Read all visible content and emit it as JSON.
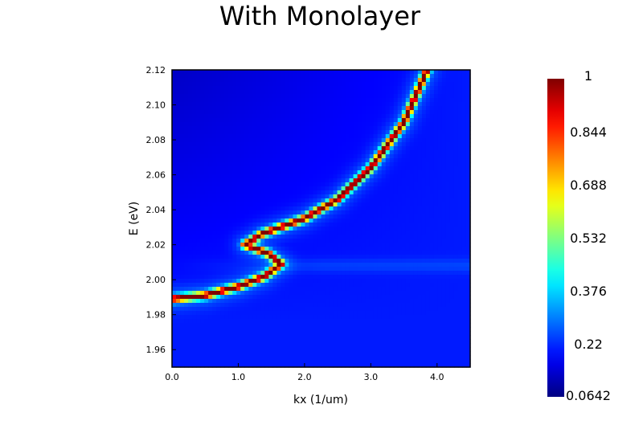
{
  "chart_data": {
    "type": "heatmap",
    "title": "With Monolayer",
    "xlabel": "kx (1/um)",
    "ylabel": "E (eV)",
    "xlim": [
      0.0,
      4.5
    ],
    "ylim": [
      1.95,
      2.12
    ],
    "x_ticks": [
      {
        "value": 0.0,
        "label": "0.0"
      },
      {
        "value": 1.0,
        "label": "1.0"
      },
      {
        "value": 2.0,
        "label": "2.0"
      },
      {
        "value": 3.0,
        "label": "3.0"
      },
      {
        "value": 4.0,
        "label": "4.0"
      }
    ],
    "y_ticks": [
      {
        "value": 1.96,
        "label": "1.96"
      },
      {
        "value": 1.98,
        "label": "1.98"
      },
      {
        "value": 2.0,
        "label": "2.00"
      },
      {
        "value": 2.02,
        "label": "2.02"
      },
      {
        "value": 2.04,
        "label": "2.04"
      },
      {
        "value": 2.06,
        "label": "2.06"
      },
      {
        "value": 2.08,
        "label": "2.08"
      },
      {
        "value": 2.1,
        "label": "2.10"
      },
      {
        "value": 2.12,
        "label": "2.12"
      }
    ],
    "colorbar": {
      "colormap": "jet",
      "min": 0.0642,
      "max": 1,
      "ticks": [
        {
          "value": 1,
          "label": "1"
        },
        {
          "value": 0.844,
          "label": "0.844"
        },
        {
          "value": 0.688,
          "label": "0.688"
        },
        {
          "value": 0.532,
          "label": "0.532"
        },
        {
          "value": 0.376,
          "label": "0.376"
        },
        {
          "value": 0.22,
          "label": "0.22"
        },
        {
          "value": 0.0642,
          "label": "0.0642"
        }
      ]
    },
    "grid": false,
    "feature": {
      "description_points": [
        [
          0.0,
          1.989
        ],
        [
          0.5,
          1.991
        ],
        [
          1.0,
          1.996
        ],
        [
          1.4,
          2.002
        ],
        [
          1.65,
          2.009
        ],
        [
          1.45,
          2.015
        ],
        [
          1.1,
          2.02
        ],
        [
          1.35,
          2.026
        ],
        [
          2.0,
          2.035
        ],
        [
          2.5,
          2.046
        ],
        [
          3.0,
          2.064
        ],
        [
          3.5,
          2.09
        ],
        [
          3.85,
          2.12
        ]
      ],
      "peak_value": 1,
      "background_low": 0.0642,
      "background_high": 0.22
    }
  }
}
